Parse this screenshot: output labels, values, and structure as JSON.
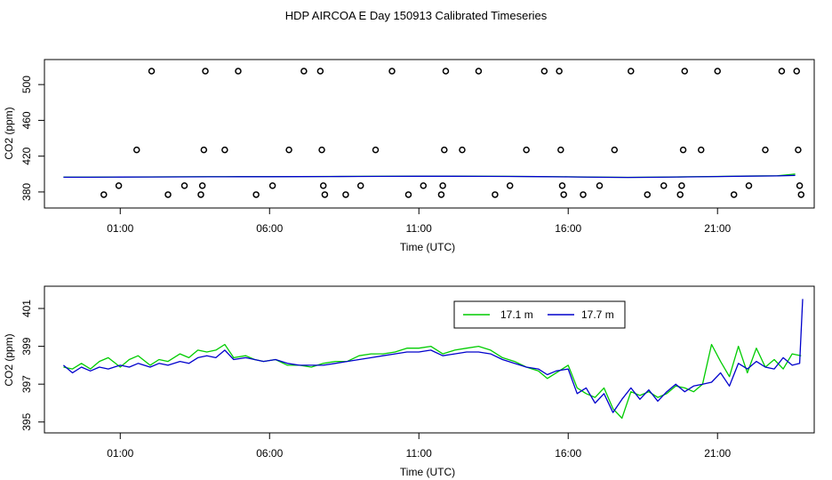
{
  "title": "HDP AIRCOA E  Day 150913  Calibrated Timeseries",
  "colors": {
    "series_17_1": "#00cc00",
    "series_17_7": "#0000cc",
    "axis": "#000000"
  },
  "chart_data": [
    {
      "type": "scatter",
      "title": "",
      "xlabel": "Time (UTC)",
      "ylabel": "CO2 (ppm)",
      "xlim": [
        -1.3,
        24.0
      ],
      "ylim": [
        370,
        520
      ],
      "x_ticks": [
        1,
        6,
        11,
        16,
        21
      ],
      "x_tick_labels": [
        "01:00",
        "06:00",
        "11:00",
        "16:00",
        "21:00"
      ],
      "y_ticks": [
        380,
        420,
        460,
        500
      ],
      "y_tick_labels": [
        "380",
        "420",
        "460",
        "500"
      ],
      "grid": false,
      "points": [
        {
          "x": 0.45,
          "y": 377
        },
        {
          "x": 0.95,
          "y": 387
        },
        {
          "x": 1.55,
          "y": 427
        },
        {
          "x": 2.05,
          "y": 515
        },
        {
          "x": 2.6,
          "y": 377
        },
        {
          "x": 3.15,
          "y": 387
        },
        {
          "x": 3.7,
          "y": 377
        },
        {
          "x": 3.75,
          "y": 387
        },
        {
          "x": 3.8,
          "y": 427
        },
        {
          "x": 3.85,
          "y": 515
        },
        {
          "x": 4.5,
          "y": 427
        },
        {
          "x": 4.95,
          "y": 515
        },
        {
          "x": 5.55,
          "y": 377
        },
        {
          "x": 6.1,
          "y": 387
        },
        {
          "x": 6.65,
          "y": 427
        },
        {
          "x": 7.15,
          "y": 515
        },
        {
          "x": 7.7,
          "y": 515
        },
        {
          "x": 7.75,
          "y": 427
        },
        {
          "x": 7.8,
          "y": 387
        },
        {
          "x": 7.85,
          "y": 377
        },
        {
          "x": 8.55,
          "y": 377
        },
        {
          "x": 9.05,
          "y": 387
        },
        {
          "x": 9.55,
          "y": 427
        },
        {
          "x": 10.1,
          "y": 515
        },
        {
          "x": 10.65,
          "y": 377
        },
        {
          "x": 11.15,
          "y": 387
        },
        {
          "x": 11.75,
          "y": 377
        },
        {
          "x": 11.8,
          "y": 387
        },
        {
          "x": 11.85,
          "y": 427
        },
        {
          "x": 11.9,
          "y": 515
        },
        {
          "x": 12.45,
          "y": 427
        },
        {
          "x": 13.0,
          "y": 515
        },
        {
          "x": 13.55,
          "y": 377
        },
        {
          "x": 14.05,
          "y": 387
        },
        {
          "x": 14.6,
          "y": 427
        },
        {
          "x": 15.2,
          "y": 515
        },
        {
          "x": 15.7,
          "y": 515
        },
        {
          "x": 15.75,
          "y": 427
        },
        {
          "x": 15.8,
          "y": 387
        },
        {
          "x": 15.85,
          "y": 377
        },
        {
          "x": 16.5,
          "y": 377
        },
        {
          "x": 17.05,
          "y": 387
        },
        {
          "x": 17.55,
          "y": 427
        },
        {
          "x": 18.1,
          "y": 515
        },
        {
          "x": 18.65,
          "y": 377
        },
        {
          "x": 19.2,
          "y": 387
        },
        {
          "x": 19.75,
          "y": 377
        },
        {
          "x": 19.8,
          "y": 387
        },
        {
          "x": 19.85,
          "y": 427
        },
        {
          "x": 19.9,
          "y": 515
        },
        {
          "x": 20.45,
          "y": 427
        },
        {
          "x": 21.0,
          "y": 515
        },
        {
          "x": 21.55,
          "y": 377
        },
        {
          "x": 22.05,
          "y": 387
        },
        {
          "x": 22.6,
          "y": 427
        },
        {
          "x": 23.15,
          "y": 515
        },
        {
          "x": 23.65,
          "y": 515
        },
        {
          "x": 23.7,
          "y": 427
        },
        {
          "x": 23.75,
          "y": 387
        },
        {
          "x": 23.8,
          "y": 377
        }
      ],
      "series": [
        {
          "name": "17.1 m",
          "x": [
            -0.9,
            0.0,
            1.0,
            2.0,
            3.0,
            4.0,
            5.0,
            6.0,
            7.0,
            8.0,
            9.0,
            10.0,
            11.0,
            12.0,
            13.0,
            14.0,
            15.0,
            16.0,
            17.0,
            18.0,
            19.0,
            20.0,
            21.0,
            22.0,
            23.0,
            23.6
          ],
          "y": [
            396.5,
            396.5,
            396.7,
            396.8,
            396.9,
            397.0,
            397.1,
            397.1,
            397.2,
            397.3,
            397.4,
            397.5,
            397.6,
            397.6,
            397.5,
            397.4,
            397.2,
            396.9,
            396.5,
            396.3,
            396.5,
            396.9,
            397.3,
            397.8,
            398.0,
            400.0
          ]
        },
        {
          "name": "17.7 m",
          "x": [
            -0.9,
            0.0,
            1.0,
            2.0,
            3.0,
            4.0,
            5.0,
            6.0,
            7.0,
            8.0,
            9.0,
            10.0,
            11.0,
            12.0,
            13.0,
            14.0,
            15.0,
            16.0,
            17.0,
            18.0,
            19.0,
            20.0,
            21.0,
            22.0,
            23.0,
            23.6
          ],
          "y": [
            396.4,
            396.4,
            396.6,
            396.7,
            396.8,
            396.9,
            397.0,
            397.0,
            397.1,
            397.2,
            397.3,
            397.4,
            397.5,
            397.5,
            397.4,
            397.3,
            397.1,
            396.8,
            396.4,
            396.2,
            396.4,
            396.8,
            397.2,
            397.6,
            397.9,
            398.5
          ]
        }
      ]
    },
    {
      "type": "line",
      "title": "",
      "xlabel": "Time (UTC)",
      "ylabel": "CO2 (ppm)",
      "xlim": [
        -1.3,
        24.0
      ],
      "ylim": [
        394.8,
        401.8
      ],
      "x_ticks": [
        1,
        6,
        11,
        16,
        21
      ],
      "x_tick_labels": [
        "01:00",
        "06:00",
        "11:00",
        "16:00",
        "21:00"
      ],
      "y_ticks": [
        395,
        397,
        399,
        401
      ],
      "y_tick_labels": [
        "395",
        "397",
        "399",
        "401"
      ],
      "grid": false,
      "legend": "top-center",
      "series": [
        {
          "name": "17.1 m",
          "x": [
            -0.9,
            -0.6,
            -0.3,
            0.0,
            0.3,
            0.6,
            1.0,
            1.3,
            1.6,
            2.0,
            2.3,
            2.6,
            3.0,
            3.3,
            3.6,
            3.9,
            4.2,
            4.5,
            4.8,
            5.2,
            5.5,
            5.8,
            6.2,
            6.6,
            7.0,
            7.4,
            7.8,
            8.2,
            8.6,
            9.0,
            9.4,
            9.8,
            10.2,
            10.6,
            11.0,
            11.4,
            11.8,
            12.2,
            12.6,
            13.0,
            13.4,
            13.8,
            14.2,
            14.6,
            15.0,
            15.3,
            15.6,
            16.0,
            16.3,
            16.6,
            16.9,
            17.2,
            17.5,
            17.8,
            18.1,
            18.4,
            18.7,
            19.0,
            19.3,
            19.6,
            19.9,
            20.2,
            20.5,
            20.8,
            21.1,
            21.4,
            21.7,
            22.0,
            22.3,
            22.6,
            22.9,
            23.2,
            23.5,
            23.8
          ],
          "y": [
            397.9,
            397.8,
            398.1,
            397.8,
            398.2,
            398.4,
            397.9,
            398.3,
            398.5,
            398.0,
            398.3,
            398.2,
            398.6,
            398.4,
            398.8,
            398.7,
            398.8,
            399.1,
            398.4,
            398.5,
            398.3,
            398.2,
            398.3,
            398.0,
            398.0,
            397.9,
            398.1,
            398.2,
            398.2,
            398.5,
            398.6,
            398.6,
            398.7,
            398.9,
            398.9,
            399.0,
            398.6,
            398.8,
            398.9,
            399.0,
            398.8,
            398.4,
            398.2,
            397.9,
            397.7,
            397.3,
            397.6,
            398.0,
            396.8,
            396.5,
            396.3,
            396.8,
            395.7,
            395.2,
            396.6,
            396.4,
            396.6,
            396.3,
            396.5,
            396.9,
            396.8,
            396.6,
            397.0,
            399.1,
            398.2,
            397.4,
            399.0,
            397.6,
            398.9,
            397.9,
            398.3,
            397.8,
            398.6,
            398.5
          ]
        },
        {
          "name": "17.7 m",
          "x": [
            -0.9,
            -0.6,
            -0.3,
            0.0,
            0.3,
            0.6,
            1.0,
            1.3,
            1.6,
            2.0,
            2.3,
            2.6,
            3.0,
            3.3,
            3.6,
            3.9,
            4.2,
            4.5,
            4.8,
            5.2,
            5.5,
            5.8,
            6.2,
            6.6,
            7.0,
            7.4,
            7.8,
            8.2,
            8.6,
            9.0,
            9.4,
            9.8,
            10.2,
            10.6,
            11.0,
            11.4,
            11.8,
            12.2,
            12.6,
            13.0,
            13.4,
            13.8,
            14.2,
            14.6,
            15.0,
            15.3,
            15.6,
            16.0,
            16.3,
            16.6,
            16.9,
            17.2,
            17.5,
            17.8,
            18.1,
            18.4,
            18.7,
            19.0,
            19.3,
            19.6,
            19.9,
            20.2,
            20.5,
            20.8,
            21.1,
            21.4,
            21.7,
            22.0,
            22.3,
            22.6,
            22.9,
            23.2,
            23.5,
            23.75,
            23.85
          ],
          "y": [
            398.0,
            397.6,
            397.9,
            397.7,
            397.9,
            397.8,
            398.0,
            397.9,
            398.1,
            397.9,
            398.1,
            398.0,
            398.2,
            398.1,
            398.4,
            398.5,
            398.4,
            398.8,
            398.3,
            398.4,
            398.3,
            398.2,
            398.3,
            398.1,
            398.0,
            398.0,
            398.0,
            398.1,
            398.2,
            398.3,
            398.4,
            398.5,
            398.6,
            398.7,
            398.7,
            398.8,
            398.5,
            398.6,
            398.7,
            398.7,
            398.6,
            398.3,
            398.1,
            397.9,
            397.8,
            397.5,
            397.7,
            397.8,
            396.5,
            396.8,
            396.0,
            396.5,
            395.5,
            396.2,
            396.8,
            396.2,
            396.7,
            396.1,
            396.6,
            397.0,
            396.6,
            396.9,
            397.0,
            397.1,
            397.6,
            396.9,
            398.1,
            397.8,
            398.2,
            397.9,
            397.8,
            398.4,
            398.0,
            398.1,
            401.5
          ]
        }
      ]
    }
  ]
}
